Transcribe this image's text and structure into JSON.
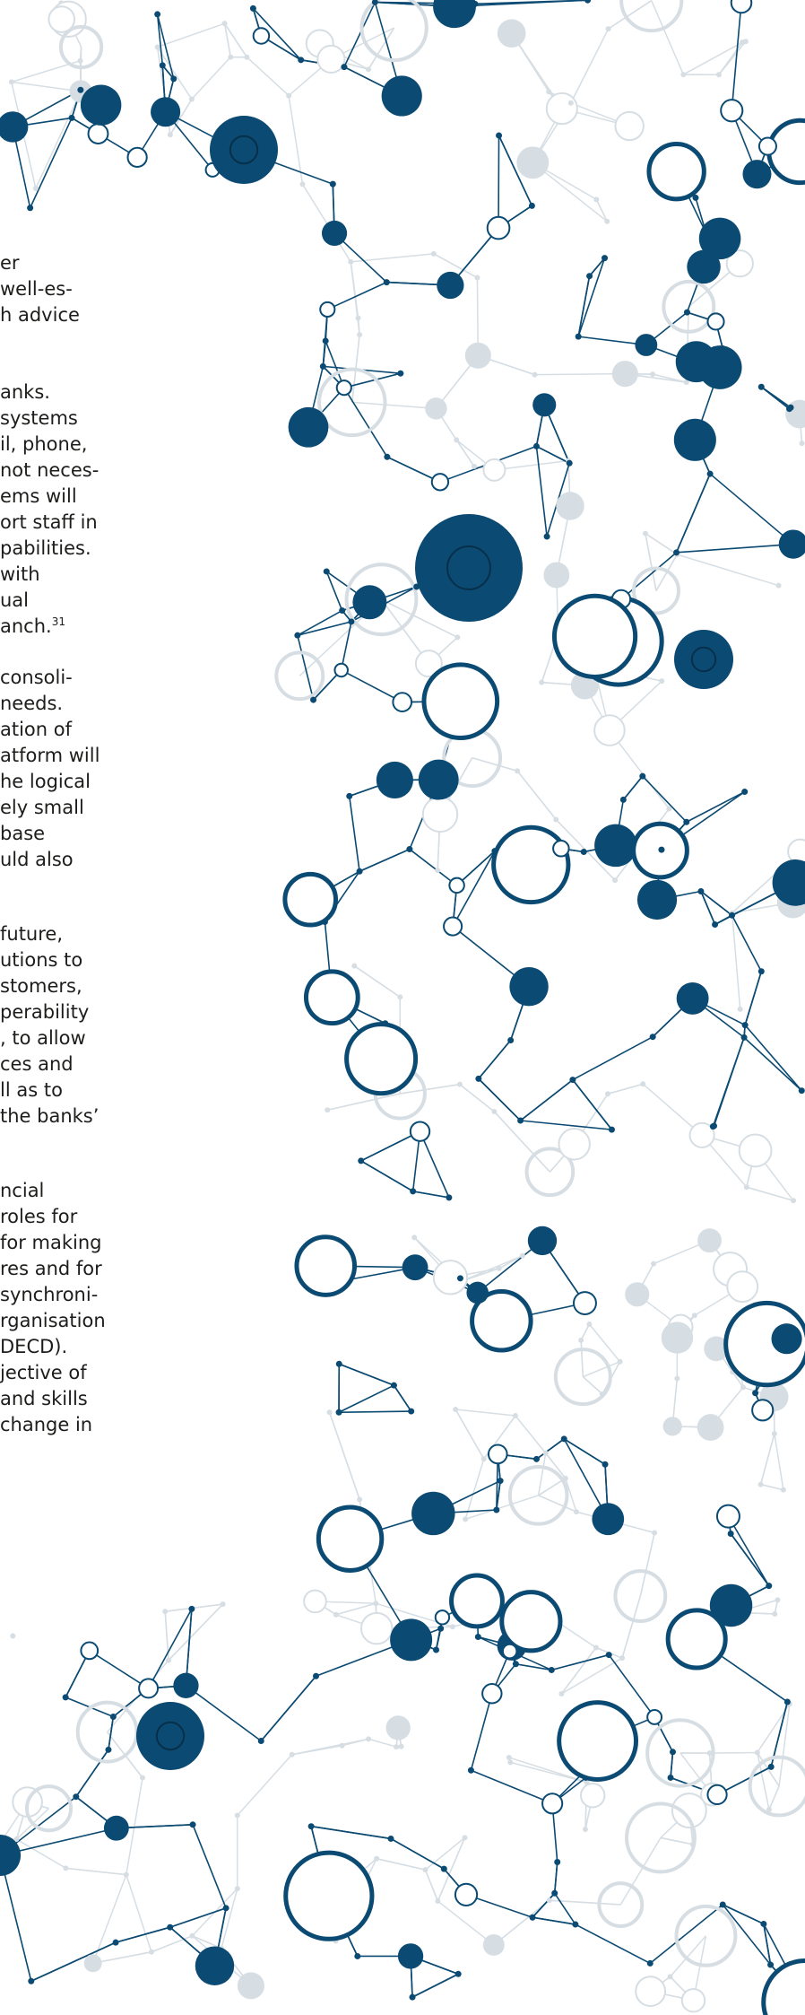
{
  "paragraphs": [
    {
      "lines": [
        "er",
        "well-es-",
        "h advice"
      ]
    },
    {
      "lines": [
        "anks.",
        "systems",
        "il, phone,",
        "not neces-",
        "ems will",
        "ort staff in",
        "pabilities.",
        "with",
        "ual",
        "anch."
      ],
      "footnote": "31"
    },
    {
      "lines": [
        "consoli-",
        "needs.",
        "ation of",
        "atform will",
        "he logical",
        "ely small",
        "base",
        "uld also"
      ]
    },
    {
      "lines": [
        "future,",
        "utions to",
        "stomers,",
        "perability",
        ", to allow",
        "ces and",
        "ll as to",
        "the banks’"
      ]
    },
    {
      "lines": [
        "ncial",
        "roles for",
        "for making",
        "res and for",
        "synchroni-",
        "rganisation",
        "DECD).",
        "jective of",
        "and skills",
        "change in"
      ]
    }
  ]
}
